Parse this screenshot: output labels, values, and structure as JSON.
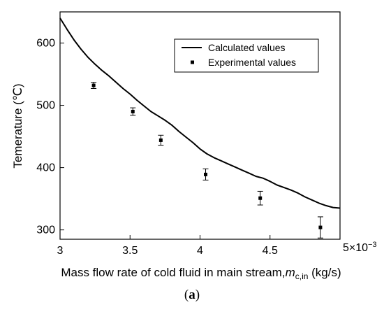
{
  "caption": {
    "open": "(",
    "letter": "a",
    "close": ")"
  },
  "chart_data": {
    "type": "line",
    "xlabel_prefix": "Mass flow rate of cold fluid in main stream,",
    "xlabel_var": "m",
    "xlabel_sub": "c,in",
    "xlabel_unit": " (kg/s)",
    "ylabel": "Temerature (℃)",
    "xlim": [
      0.003,
      0.005
    ],
    "ylim": [
      285,
      650
    ],
    "x_multiplier_base": "5×10",
    "x_multiplier_exp": "−3",
    "x_ticks": [
      {
        "value": 0.003,
        "label": "3"
      },
      {
        "value": 0.0035,
        "label": "3.5"
      },
      {
        "value": 0.004,
        "label": "4"
      },
      {
        "value": 0.0045,
        "label": "4.5"
      }
    ],
    "y_ticks": [
      {
        "value": 300,
        "label": "300"
      },
      {
        "value": 400,
        "label": "400"
      },
      {
        "value": 500,
        "label": "500"
      },
      {
        "value": 600,
        "label": "600"
      }
    ],
    "legend_position": "top-right",
    "series": [
      {
        "name": "Calculated values",
        "kind": "line",
        "color": "#000000",
        "x": [
          0.003,
          0.00305,
          0.0031,
          0.00315,
          0.0032,
          0.00325,
          0.0033,
          0.00335,
          0.0034,
          0.00345,
          0.0035,
          0.00355,
          0.0036,
          0.00365,
          0.0037,
          0.00375,
          0.0038,
          0.00385,
          0.0039,
          0.00395,
          0.004,
          0.00405,
          0.0041,
          0.00415,
          0.0042,
          0.00425,
          0.0043,
          0.00435,
          0.0044,
          0.00445,
          0.0045,
          0.00455,
          0.0046,
          0.00465,
          0.0047,
          0.00475,
          0.0048,
          0.00485,
          0.0049,
          0.00495,
          0.005
        ],
        "y": [
          640,
          622,
          605,
          590,
          577,
          566,
          556,
          547,
          537,
          527,
          518,
          508,
          499,
          490,
          483,
          476,
          468,
          458,
          449,
          440,
          430,
          422,
          416,
          411,
          406,
          401,
          396,
          391,
          386,
          383,
          378,
          372,
          368,
          364,
          359,
          353,
          348,
          343,
          339,
          336,
          335
        ]
      },
      {
        "name": "Experimental values",
        "kind": "scatter",
        "color": "#000000",
        "x": [
          0.00324,
          0.00352,
          0.00372,
          0.00404,
          0.00443,
          0.00486
        ],
        "y": [
          532,
          490,
          444,
          389,
          351,
          304
        ],
        "yerr": [
          5,
          6,
          8,
          9,
          11,
          17
        ]
      }
    ]
  }
}
